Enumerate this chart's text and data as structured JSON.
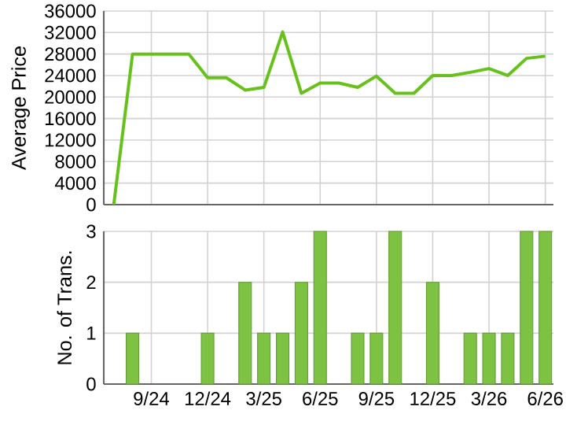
{
  "chart_data": [
    {
      "type": "line",
      "ylabel": "Average Price",
      "x": [
        "2024-07",
        "2024-08",
        "2024-09",
        "2024-10",
        "2024-11",
        "2024-12",
        "2025-01",
        "2025-02",
        "2025-03",
        "2025-04",
        "2025-05",
        "2025-06",
        "2025-07",
        "2025-08",
        "2025-09",
        "2025-10",
        "2025-11",
        "2025-12",
        "2026-01",
        "2026-02",
        "2026-03",
        "2026-04",
        "2026-05",
        "2026-06"
      ],
      "series": [
        {
          "color": "#66c21a",
          "values": [
            0,
            28000,
            28000,
            28000,
            28000,
            23600,
            23600,
            21300,
            21800,
            32100,
            20700,
            22600,
            22600,
            21800,
            23900,
            20700,
            20700,
            24000,
            24000,
            24600,
            25300,
            24000,
            27200,
            27600
          ]
        }
      ],
      "xlim": [
        "2024-06-15",
        "2026-06-14"
      ],
      "xticks": [
        {
          "value": "2024-09",
          "label": null
        },
        {
          "value": "2024-12",
          "label": null
        },
        {
          "value": "2025-03",
          "label": null
        },
        {
          "value": "2025-06",
          "label": null
        },
        {
          "value": "2025-09",
          "label": null
        },
        {
          "value": "2025-12",
          "label": null
        },
        {
          "value": "2026-03",
          "label": null
        },
        {
          "value": "2026-06",
          "label": null
        }
      ],
      "ylim": [
        0,
        36000
      ],
      "yticks": [
        0,
        4000,
        8000,
        12000,
        16000,
        20000,
        24000,
        28000,
        32000,
        36000
      ],
      "grid": true,
      "tick_labels": "y"
    },
    {
      "type": "bar",
      "ylabel": "No. of Trans.",
      "x": [
        "2024-08",
        "2024-12",
        "2025-02",
        "2025-03",
        "2025-04",
        "2025-05",
        "2025-06",
        "2025-08",
        "2025-09",
        "2025-10",
        "2025-12",
        "2026-02",
        "2026-03",
        "2026-04",
        "2026-05",
        "2026-06"
      ],
      "values": [
        1,
        1,
        2,
        1,
        1,
        2,
        3,
        1,
        1,
        3,
        2,
        1,
        1,
        1,
        3,
        3
      ],
      "color": "#7dc242",
      "xlim": [
        "2024-06-15",
        "2026-06-14"
      ],
      "xticks": [
        {
          "value": "2024-09",
          "label": "9/24"
        },
        {
          "value": "2024-12",
          "label": "12/24"
        },
        {
          "value": "2025-03",
          "label": "3/25"
        },
        {
          "value": "2025-06",
          "label": "6/25"
        },
        {
          "value": "2025-09",
          "label": "9/25"
        },
        {
          "value": "2025-12",
          "label": "12/25"
        },
        {
          "value": "2026-03",
          "label": "3/26"
        },
        {
          "value": "2026-06",
          "label": "6/26"
        }
      ],
      "ylim": [
        0,
        3
      ],
      "yticks": [
        0,
        1,
        2,
        3
      ],
      "grid": true
    }
  ]
}
